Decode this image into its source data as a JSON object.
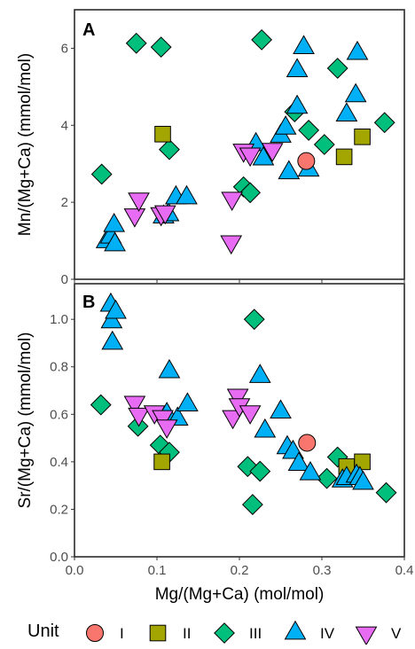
{
  "chart_data": [
    {
      "panel": "A",
      "type": "scatter",
      "ylabel": "Mn/(Mg+Ca) (mmol/mol)",
      "xlim": [
        0.0,
        0.4
      ],
      "ylim": [
        0,
        7
      ],
      "xticks": [
        "0.0",
        "0.1",
        "0.2",
        "0.3",
        "0.4"
      ],
      "yticks": [
        0,
        2,
        4,
        6
      ],
      "grid": false,
      "series": [
        {
          "name": "I",
          "values": [
            [
              0.281,
              3.07
            ]
          ]
        },
        {
          "name": "II",
          "values": [
            [
              0.107,
              3.77
            ],
            [
              0.327,
              3.18
            ],
            [
              0.349,
              3.7
            ]
          ]
        },
        {
          "name": "III",
          "values": [
            [
              0.033,
              2.73
            ],
            [
              0.075,
              6.13
            ],
            [
              0.105,
              6.03
            ],
            [
              0.115,
              3.37
            ],
            [
              0.205,
              2.4
            ],
            [
              0.213,
              2.25
            ],
            [
              0.227,
              6.22
            ],
            [
              0.267,
              4.35
            ],
            [
              0.284,
              3.87
            ],
            [
              0.303,
              3.5
            ],
            [
              0.319,
              5.48
            ],
            [
              0.376,
              4.07
            ]
          ]
        },
        {
          "name": "IV",
          "values": [
            [
              0.039,
              0.98
            ],
            [
              0.044,
              1.1
            ],
            [
              0.048,
              1.4
            ],
            [
              0.049,
              0.9
            ],
            [
              0.108,
              1.62
            ],
            [
              0.114,
              1.68
            ],
            [
              0.123,
              2.12
            ],
            [
              0.136,
              2.12
            ],
            [
              0.22,
              3.5
            ],
            [
              0.229,
              3.13
            ],
            [
              0.25,
              3.72
            ],
            [
              0.256,
              3.93
            ],
            [
              0.26,
              2.77
            ],
            [
              0.27,
              4.47
            ],
            [
              0.27,
              5.42
            ],
            [
              0.278,
              6.02
            ],
            [
              0.284,
              2.84
            ],
            [
              0.33,
              4.27
            ],
            [
              0.341,
              4.77
            ],
            [
              0.343,
              5.87
            ]
          ]
        },
        {
          "name": "V",
          "values": [
            [
              0.073,
              1.67
            ],
            [
              0.078,
              2.08
            ],
            [
              0.105,
              1.7
            ],
            [
              0.11,
              1.75
            ],
            [
              0.19,
              0.97
            ],
            [
              0.191,
              2.1
            ],
            [
              0.205,
              3.35
            ],
            [
              0.213,
              3.25
            ],
            [
              0.24,
              3.37
            ]
          ]
        }
      ]
    },
    {
      "panel": "B",
      "type": "scatter",
      "xlabel": "Mg/(Mg+Ca) (mol/mol)",
      "ylabel": "Sr/(Mg+Ca) (mmol/mol)",
      "xlim": [
        0.0,
        0.4
      ],
      "ylim": [
        0.0,
        1.15
      ],
      "xticks": [
        "0.0",
        "0.1",
        "0.2",
        "0.3",
        "0.4"
      ],
      "yticks": [
        "0.0",
        "0.2",
        "0.4",
        "0.6",
        "0.8",
        "1.0"
      ],
      "grid": false,
      "series": [
        {
          "name": "I",
          "values": [
            [
              0.282,
              0.48
            ]
          ]
        },
        {
          "name": "II",
          "values": [
            [
              0.106,
              0.4
            ],
            [
              0.33,
              0.38
            ],
            [
              0.349,
              0.4
            ]
          ]
        },
        {
          "name": "III",
          "values": [
            [
              0.032,
              0.64
            ],
            [
              0.077,
              0.55
            ],
            [
              0.104,
              0.47
            ],
            [
              0.115,
              0.44
            ],
            [
              0.21,
              0.38
            ],
            [
              0.216,
              0.22
            ],
            [
              0.218,
              1.0
            ],
            [
              0.225,
              0.36
            ],
            [
              0.306,
              0.33
            ],
            [
              0.319,
              0.42
            ],
            [
              0.378,
              0.27
            ]
          ]
        },
        {
          "name": "IV",
          "values": [
            [
              0.044,
              1.06
            ],
            [
              0.045,
              0.99
            ],
            [
              0.046,
              0.9
            ],
            [
              0.05,
              1.03
            ],
            [
              0.112,
              0.6
            ],
            [
              0.115,
              0.78
            ],
            [
              0.125,
              0.58
            ],
            [
              0.137,
              0.64
            ],
            [
              0.225,
              0.76
            ],
            [
              0.231,
              0.53
            ],
            [
              0.25,
              0.61
            ],
            [
              0.258,
              0.46
            ],
            [
              0.265,
              0.44
            ],
            [
              0.272,
              0.39
            ],
            [
              0.286,
              0.35
            ],
            [
              0.325,
              0.32
            ],
            [
              0.33,
              0.33
            ],
            [
              0.342,
              0.34
            ],
            [
              0.346,
              0.33
            ],
            [
              0.35,
              0.31
            ]
          ]
        },
        {
          "name": "V",
          "values": [
            [
              0.073,
              0.65
            ],
            [
              0.078,
              0.6
            ],
            [
              0.097,
              0.61
            ],
            [
              0.107,
              0.59
            ],
            [
              0.112,
              0.55
            ],
            [
              0.192,
              0.59
            ],
            [
              0.198,
              0.68
            ],
            [
              0.2,
              0.64
            ],
            [
              0.213,
              0.61
            ]
          ]
        }
      ]
    }
  ],
  "legend": {
    "title": "Unit",
    "position": "bottom",
    "items": [
      {
        "label": "I",
        "shape": "circle",
        "color": "#F8766D"
      },
      {
        "label": "II",
        "shape": "square",
        "color": "#A3A500"
      },
      {
        "label": "III",
        "shape": "diamond",
        "color": "#00BF7D"
      },
      {
        "label": "IV",
        "shape": "triangle-up",
        "color": "#00B0F6"
      },
      {
        "label": "V",
        "shape": "triangle-down",
        "color": "#E76BF3"
      }
    ]
  }
}
